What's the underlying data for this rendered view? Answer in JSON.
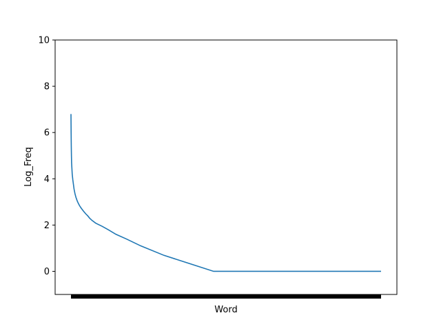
{
  "chart_data": {
    "type": "line",
    "title": "",
    "xlabel": "Word",
    "ylabel": "Log_Freq",
    "ylim": [
      -1,
      10
    ],
    "y_ticks": [
      0,
      2,
      4,
      6,
      8,
      10
    ],
    "x_tick_labels": "dense, unreadable (one per word)",
    "grid": false,
    "legend": "none",
    "colors": {
      "line": "#1f77b4",
      "axes": "#000000",
      "background": "#ffffff"
    },
    "x_range_index": [
      0,
      1000
    ],
    "series": [
      {
        "points": [
          [
            0,
            6.8
          ],
          [
            0.5,
            6.0
          ],
          [
            1,
            5.4
          ],
          [
            1.5,
            5.0
          ],
          [
            2,
            4.7
          ],
          [
            3,
            4.45
          ],
          [
            4,
            4.2
          ],
          [
            6,
            3.95
          ],
          [
            8,
            3.75
          ],
          [
            10,
            3.55
          ],
          [
            13,
            3.35
          ],
          [
            16,
            3.2
          ],
          [
            20,
            3.05
          ],
          [
            24,
            2.93
          ],
          [
            28,
            2.83
          ],
          [
            33,
            2.73
          ],
          [
            38,
            2.64
          ],
          [
            43,
            2.56
          ],
          [
            48,
            2.48
          ],
          [
            54,
            2.4
          ],
          [
            60,
            2.3
          ],
          [
            68,
            2.2
          ],
          [
            80,
            2.08
          ],
          [
            100,
            1.95
          ],
          [
            120,
            1.8
          ],
          [
            145,
            1.6
          ],
          [
            180,
            1.39
          ],
          [
            225,
            1.1
          ],
          [
            300,
            0.69
          ],
          [
            460,
            0.0
          ],
          [
            1000,
            0.0
          ]
        ]
      }
    ]
  }
}
